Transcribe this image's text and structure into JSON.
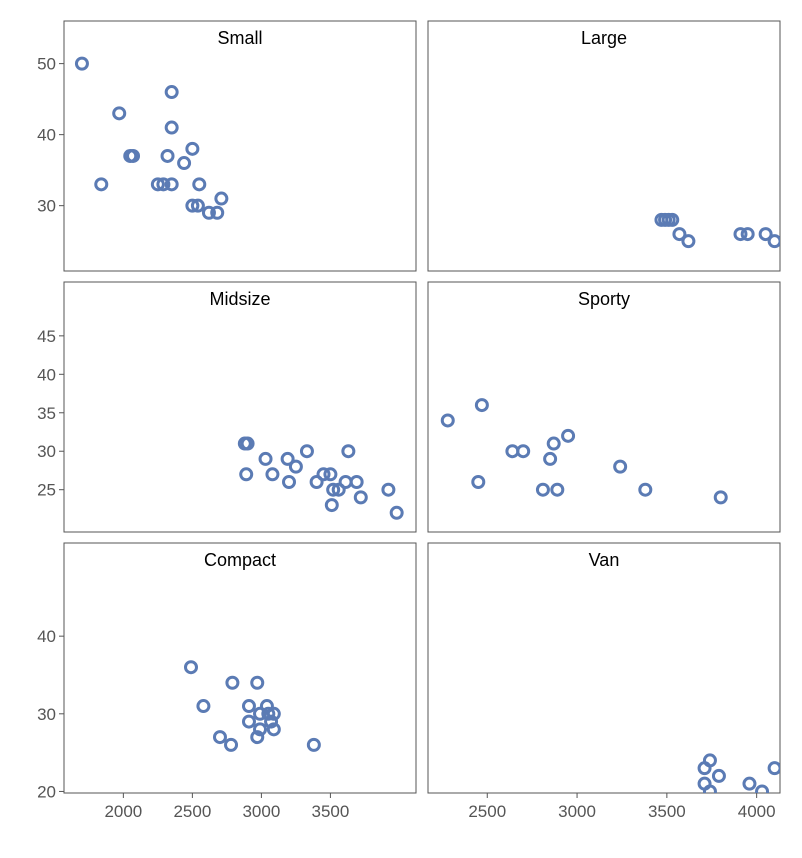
{
  "chart_data": {
    "type": "scatter",
    "layout": "faceted 3x2",
    "point_color": "#5b7bb4",
    "grid": false,
    "panels": [
      {
        "name": "Small",
        "ylim": [
          20.8,
          56
        ],
        "y_ticks": [
          30,
          40,
          50
        ],
        "xlim": [
          1570,
          4120
        ],
        "x_ticks": [],
        "points": [
          [
            1700,
            50
          ],
          [
            1970,
            43
          ],
          [
            2350,
            46
          ],
          [
            2350,
            41
          ],
          [
            2050,
            37
          ],
          [
            2070,
            37
          ],
          [
            2320,
            37
          ],
          [
            2500,
            38
          ],
          [
            2440,
            36
          ],
          [
            1840,
            33
          ],
          [
            2250,
            33
          ],
          [
            2290,
            33
          ],
          [
            2350,
            33
          ],
          [
            2550,
            33
          ],
          [
            2710,
            31
          ],
          [
            2500,
            30
          ],
          [
            2540,
            30
          ],
          [
            2620,
            29
          ],
          [
            2680,
            29
          ]
        ]
      },
      {
        "name": "Large",
        "ylim": [
          20.8,
          56
        ],
        "y_ticks": [],
        "xlim": [
          2170,
          4130
        ],
        "x_ticks": [],
        "points": [
          [
            3470,
            28
          ],
          [
            3490,
            28
          ],
          [
            3510,
            28
          ],
          [
            3530,
            28
          ],
          [
            3570,
            26
          ],
          [
            3620,
            25
          ],
          [
            3910,
            26
          ],
          [
            3950,
            26
          ],
          [
            4050,
            26
          ],
          [
            4100,
            25
          ]
        ]
      },
      {
        "name": "Midsize",
        "ylim": [
          19.5,
          52
        ],
        "y_ticks": [
          25,
          30,
          35,
          40,
          45
        ],
        "xlim": [
          1570,
          4120
        ],
        "x_ticks": [],
        "points": [
          [
            2880,
            31
          ],
          [
            2900,
            31
          ],
          [
            2890,
            27
          ],
          [
            3030,
            29
          ],
          [
            3080,
            27
          ],
          [
            3190,
            29
          ],
          [
            3250,
            28
          ],
          [
            3200,
            26
          ],
          [
            3330,
            30
          ],
          [
            3450,
            27
          ],
          [
            3400,
            26
          ],
          [
            3500,
            27
          ],
          [
            3520,
            25
          ],
          [
            3560,
            25
          ],
          [
            3510,
            23
          ],
          [
            3610,
            26
          ],
          [
            3630,
            30
          ],
          [
            3690,
            26
          ],
          [
            3720,
            24
          ],
          [
            3920,
            25
          ],
          [
            3980,
            22
          ]
        ]
      },
      {
        "name": "Sporty",
        "ylim": [
          19.5,
          52
        ],
        "y_ticks": [],
        "xlim": [
          2170,
          4130
        ],
        "x_ticks": [],
        "points": [
          [
            2280,
            34
          ],
          [
            2470,
            36
          ],
          [
            2450,
            26
          ],
          [
            2640,
            30
          ],
          [
            2700,
            30
          ],
          [
            2810,
            25
          ],
          [
            2850,
            29
          ],
          [
            2870,
            31
          ],
          [
            2890,
            25
          ],
          [
            2950,
            32
          ],
          [
            3240,
            28
          ],
          [
            3380,
            25
          ],
          [
            3800,
            24
          ]
        ]
      },
      {
        "name": "Compact",
        "ylim": [
          19.8,
          52
        ],
        "y_ticks": [
          20,
          30,
          40
        ],
        "xlim": [
          1570,
          4120
        ],
        "x_ticks": [
          2000,
          2500,
          3000,
          3500
        ],
        "points": [
          [
            2490,
            36
          ],
          [
            2580,
            31
          ],
          [
            2700,
            27
          ],
          [
            2790,
            34
          ],
          [
            2780,
            26
          ],
          [
            2910,
            31
          ],
          [
            2910,
            29
          ],
          [
            2970,
            34
          ],
          [
            2970,
            27
          ],
          [
            2990,
            30
          ],
          [
            2990,
            28
          ],
          [
            3040,
            31
          ],
          [
            3050,
            30
          ],
          [
            3070,
            29
          ],
          [
            3090,
            30
          ],
          [
            3090,
            28
          ],
          [
            3380,
            26
          ]
        ]
      },
      {
        "name": "Van",
        "ylim": [
          19.8,
          52
        ],
        "y_ticks": [],
        "xlim": [
          2170,
          4130
        ],
        "x_ticks": [
          2500,
          3000,
          3500,
          4000
        ],
        "points": [
          [
            3710,
            23
          ],
          [
            3740,
            24
          ],
          [
            3710,
            21
          ],
          [
            3740,
            20
          ],
          [
            3790,
            22
          ],
          [
            3960,
            21
          ],
          [
            4030,
            20
          ],
          [
            4100,
            23
          ]
        ]
      }
    ]
  }
}
